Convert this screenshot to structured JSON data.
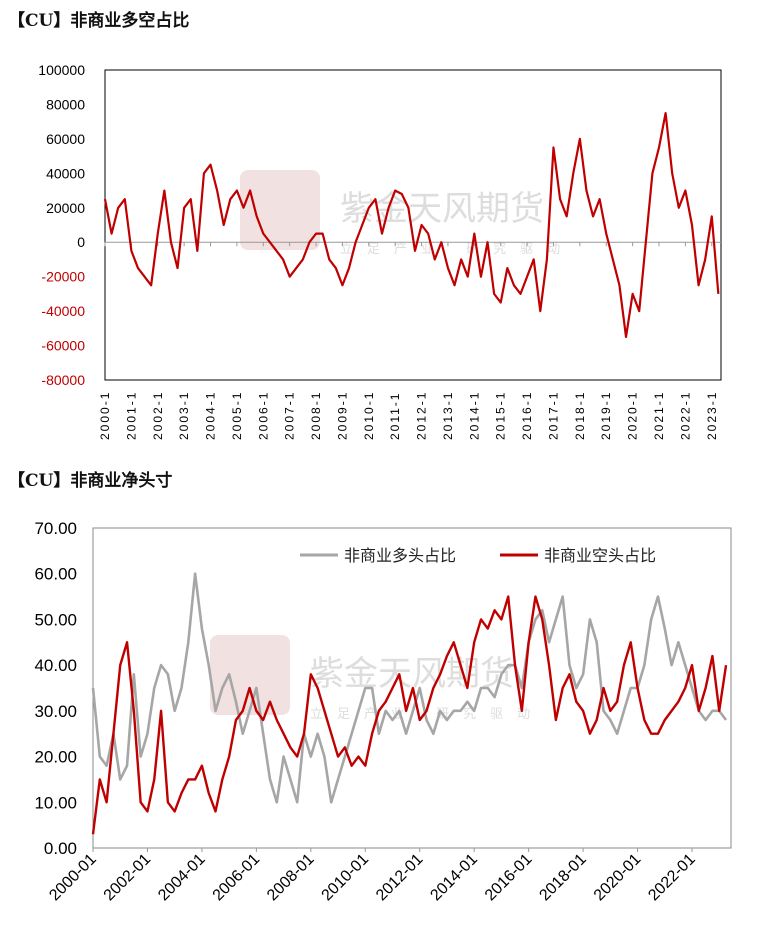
{
  "chart_data": [
    {
      "type": "line",
      "title": "【CU】非商业多空占比",
      "ylim": [
        -80000,
        100000
      ],
      "yticks": [
        "100000",
        "80000",
        "60000",
        "40000",
        "20000",
        "0",
        "-20000",
        "-40000",
        "-60000",
        "-80000"
      ],
      "xticks": [
        "2000-1",
        "2001-1",
        "2002-1",
        "2003-1",
        "2004-1",
        "2005-1",
        "2006-1",
        "2007-1",
        "2008-1",
        "2009-1",
        "2010-1",
        "2011-1",
        "2012-1",
        "2013-1",
        "2014-1",
        "2015-1",
        "2016-1",
        "2017-1",
        "2018-1",
        "2019-1",
        "2020-1",
        "2021-1",
        "2022-1",
        "2023-1"
      ],
      "negative_tick_color": "#C00000",
      "grid": false,
      "x": [
        "2000-01",
        "2000-04",
        "2000-07",
        "2000-10",
        "2001-01",
        "2001-04",
        "2001-07",
        "2001-10",
        "2002-01",
        "2002-04",
        "2002-07",
        "2002-10",
        "2003-01",
        "2003-04",
        "2003-07",
        "2003-10",
        "2004-01",
        "2004-04",
        "2004-07",
        "2004-10",
        "2005-01",
        "2005-04",
        "2005-07",
        "2005-10",
        "2006-01",
        "2006-04",
        "2006-07",
        "2006-10",
        "2007-01",
        "2007-04",
        "2007-07",
        "2007-10",
        "2008-01",
        "2008-04",
        "2008-07",
        "2008-10",
        "2009-01",
        "2009-04",
        "2009-07",
        "2009-10",
        "2010-01",
        "2010-04",
        "2010-07",
        "2010-10",
        "2011-01",
        "2011-04",
        "2011-07",
        "2011-10",
        "2012-01",
        "2012-04",
        "2012-07",
        "2012-10",
        "2013-01",
        "2013-04",
        "2013-07",
        "2013-10",
        "2014-01",
        "2014-04",
        "2014-07",
        "2014-10",
        "2015-01",
        "2015-04",
        "2015-07",
        "2015-10",
        "2016-01",
        "2016-04",
        "2016-07",
        "2016-10",
        "2017-01",
        "2017-04",
        "2017-07",
        "2017-10",
        "2018-01",
        "2018-04",
        "2018-07",
        "2018-10",
        "2019-01",
        "2019-04",
        "2019-07",
        "2019-10",
        "2020-01",
        "2020-04",
        "2020-07",
        "2020-10",
        "2021-01",
        "2021-04",
        "2021-07",
        "2021-10",
        "2022-01",
        "2022-04",
        "2022-07",
        "2022-10",
        "2023-01",
        "2023-04"
      ],
      "series": [
        {
          "color": "#C00000",
          "values": [
            25000,
            5000,
            20000,
            25000,
            -5000,
            -15000,
            -20000,
            -25000,
            5000,
            30000,
            0,
            -15000,
            20000,
            25000,
            -5000,
            40000,
            45000,
            30000,
            10000,
            25000,
            30000,
            20000,
            30000,
            15000,
            5000,
            0,
            -5000,
            -10000,
            -20000,
            -15000,
            -10000,
            0,
            5000,
            5000,
            -10000,
            -15000,
            -25000,
            -15000,
            0,
            10000,
            20000,
            25000,
            5000,
            20000,
            30000,
            28000,
            20000,
            -5000,
            10000,
            5000,
            -10000,
            0,
            -15000,
            -25000,
            -10000,
            -20000,
            5000,
            -20000,
            0,
            -30000,
            -35000,
            -15000,
            -25000,
            -30000,
            -20000,
            -10000,
            -40000,
            -10000,
            55000,
            25000,
            15000,
            40000,
            60000,
            30000,
            15000,
            25000,
            5000,
            -10000,
            -25000,
            -55000,
            -30000,
            -40000,
            0,
            40000,
            55000,
            75000,
            40000,
            20000,
            30000,
            10000,
            -25000,
            -10000,
            15000,
            -30000
          ]
        }
      ]
    },
    {
      "type": "line",
      "title": "【CU】非商业净头寸",
      "ylim": [
        0,
        70
      ],
      "yticks": [
        "70.00",
        "60.00",
        "50.00",
        "40.00",
        "30.00",
        "20.00",
        "10.00",
        "0.00"
      ],
      "xticks": [
        "2000-01",
        "2002-01",
        "2004-01",
        "2006-01",
        "2008-01",
        "2010-01",
        "2012-01",
        "2014-01",
        "2016-01",
        "2018-01",
        "2020-01",
        "2022-01"
      ],
      "legend": "top-center",
      "grid": false,
      "x_same_as_first_chart": true,
      "series": [
        {
          "name": "非商业多头占比",
          "color": "#A6A6A6",
          "values": [
            35,
            20,
            18,
            25,
            15,
            18,
            38,
            20,
            25,
            35,
            40,
            38,
            30,
            35,
            45,
            60,
            48,
            40,
            30,
            35,
            38,
            32,
            25,
            30,
            35,
            25,
            15,
            10,
            20,
            15,
            10,
            25,
            20,
            25,
            20,
            10,
            15,
            20,
            25,
            30,
            35,
            35,
            25,
            30,
            28,
            30,
            25,
            30,
            35,
            28,
            25,
            30,
            28,
            30,
            30,
            32,
            30,
            35,
            35,
            33,
            38,
            40,
            40,
            35,
            45,
            50,
            52,
            45,
            50,
            55,
            40,
            35,
            38,
            50,
            45,
            30,
            28,
            25,
            30,
            35,
            35,
            40,
            50,
            55,
            48,
            40,
            45,
            40,
            35,
            30,
            28,
            30,
            30,
            28
          ]
        },
        {
          "name": "非商业空头占比",
          "color": "#C00000",
          "values": [
            3,
            15,
            10,
            25,
            40,
            45,
            30,
            10,
            8,
            15,
            30,
            10,
            8,
            12,
            15,
            15,
            18,
            12,
            8,
            15,
            20,
            28,
            30,
            35,
            30,
            28,
            32,
            28,
            25,
            22,
            20,
            25,
            38,
            35,
            30,
            25,
            20,
            22,
            18,
            20,
            18,
            25,
            30,
            32,
            35,
            38,
            30,
            35,
            28,
            30,
            35,
            38,
            42,
            45,
            40,
            35,
            45,
            50,
            48,
            52,
            50,
            55,
            40,
            30,
            45,
            55,
            50,
            40,
            28,
            35,
            38,
            32,
            30,
            25,
            28,
            35,
            30,
            32,
            40,
            45,
            35,
            28,
            25,
            25,
            28,
            30,
            32,
            35,
            40,
            30,
            35,
            42,
            30,
            40
          ]
        }
      ]
    }
  ],
  "watermark": {
    "brand": "紫金天风期货",
    "slogan": "立足产业 研究驱动"
  }
}
